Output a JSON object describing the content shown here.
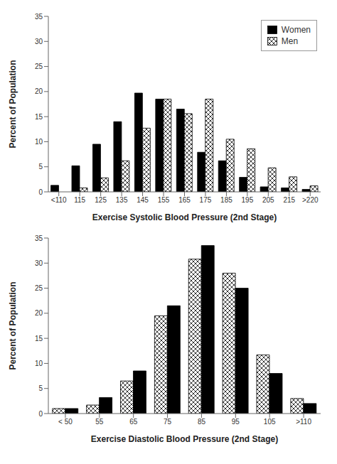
{
  "chart_data": [
    {
      "type": "bar",
      "xlabel": "Exercise Systolic Blood Pressure (2nd Stage)",
      "ylabel": "Percent of Population",
      "categories": [
        "<110",
        "115",
        "125",
        "135",
        "145",
        "155",
        "165",
        "175",
        "185",
        "195",
        "205",
        "215",
        ">220"
      ],
      "series": [
        {
          "name": "Women",
          "color": "#000000",
          "values": [
            1.3,
            5.2,
            9.5,
            14.0,
            19.7,
            18.5,
            16.5,
            7.9,
            6.2,
            2.9,
            1.0,
            0.8,
            0.5
          ]
        },
        {
          "name": "Men",
          "color": "#ffffff",
          "values": [
            0.0,
            0.8,
            2.8,
            6.2,
            12.7,
            18.5,
            15.6,
            18.5,
            10.5,
            8.6,
            4.8,
            3.0,
            1.2
          ]
        }
      ],
      "ylim": [
        0,
        35
      ],
      "yticks": [
        0,
        5,
        10,
        15,
        20,
        25,
        30,
        35
      ],
      "legend": "upper right"
    },
    {
      "type": "bar",
      "xlabel": "Exercise Diastolic Blood Pressure (2nd Stage)",
      "ylabel": "Percent of Population",
      "categories": [
        "< 50",
        "55",
        "65",
        "75",
        "85",
        "95",
        "105",
        ">110"
      ],
      "series": [
        {
          "name": "Men",
          "color": "#ffffff",
          "values": [
            1.0,
            1.7,
            6.5,
            19.5,
            30.8,
            28.0,
            11.7,
            3.0
          ]
        },
        {
          "name": "Women",
          "color": "#000000",
          "values": [
            1.0,
            3.2,
            8.5,
            21.5,
            33.5,
            25.0,
            8.0,
            2.0
          ]
        }
      ],
      "ylim": [
        0,
        35
      ],
      "yticks": [
        0,
        5,
        10,
        15,
        20,
        25,
        30,
        35
      ]
    }
  ]
}
